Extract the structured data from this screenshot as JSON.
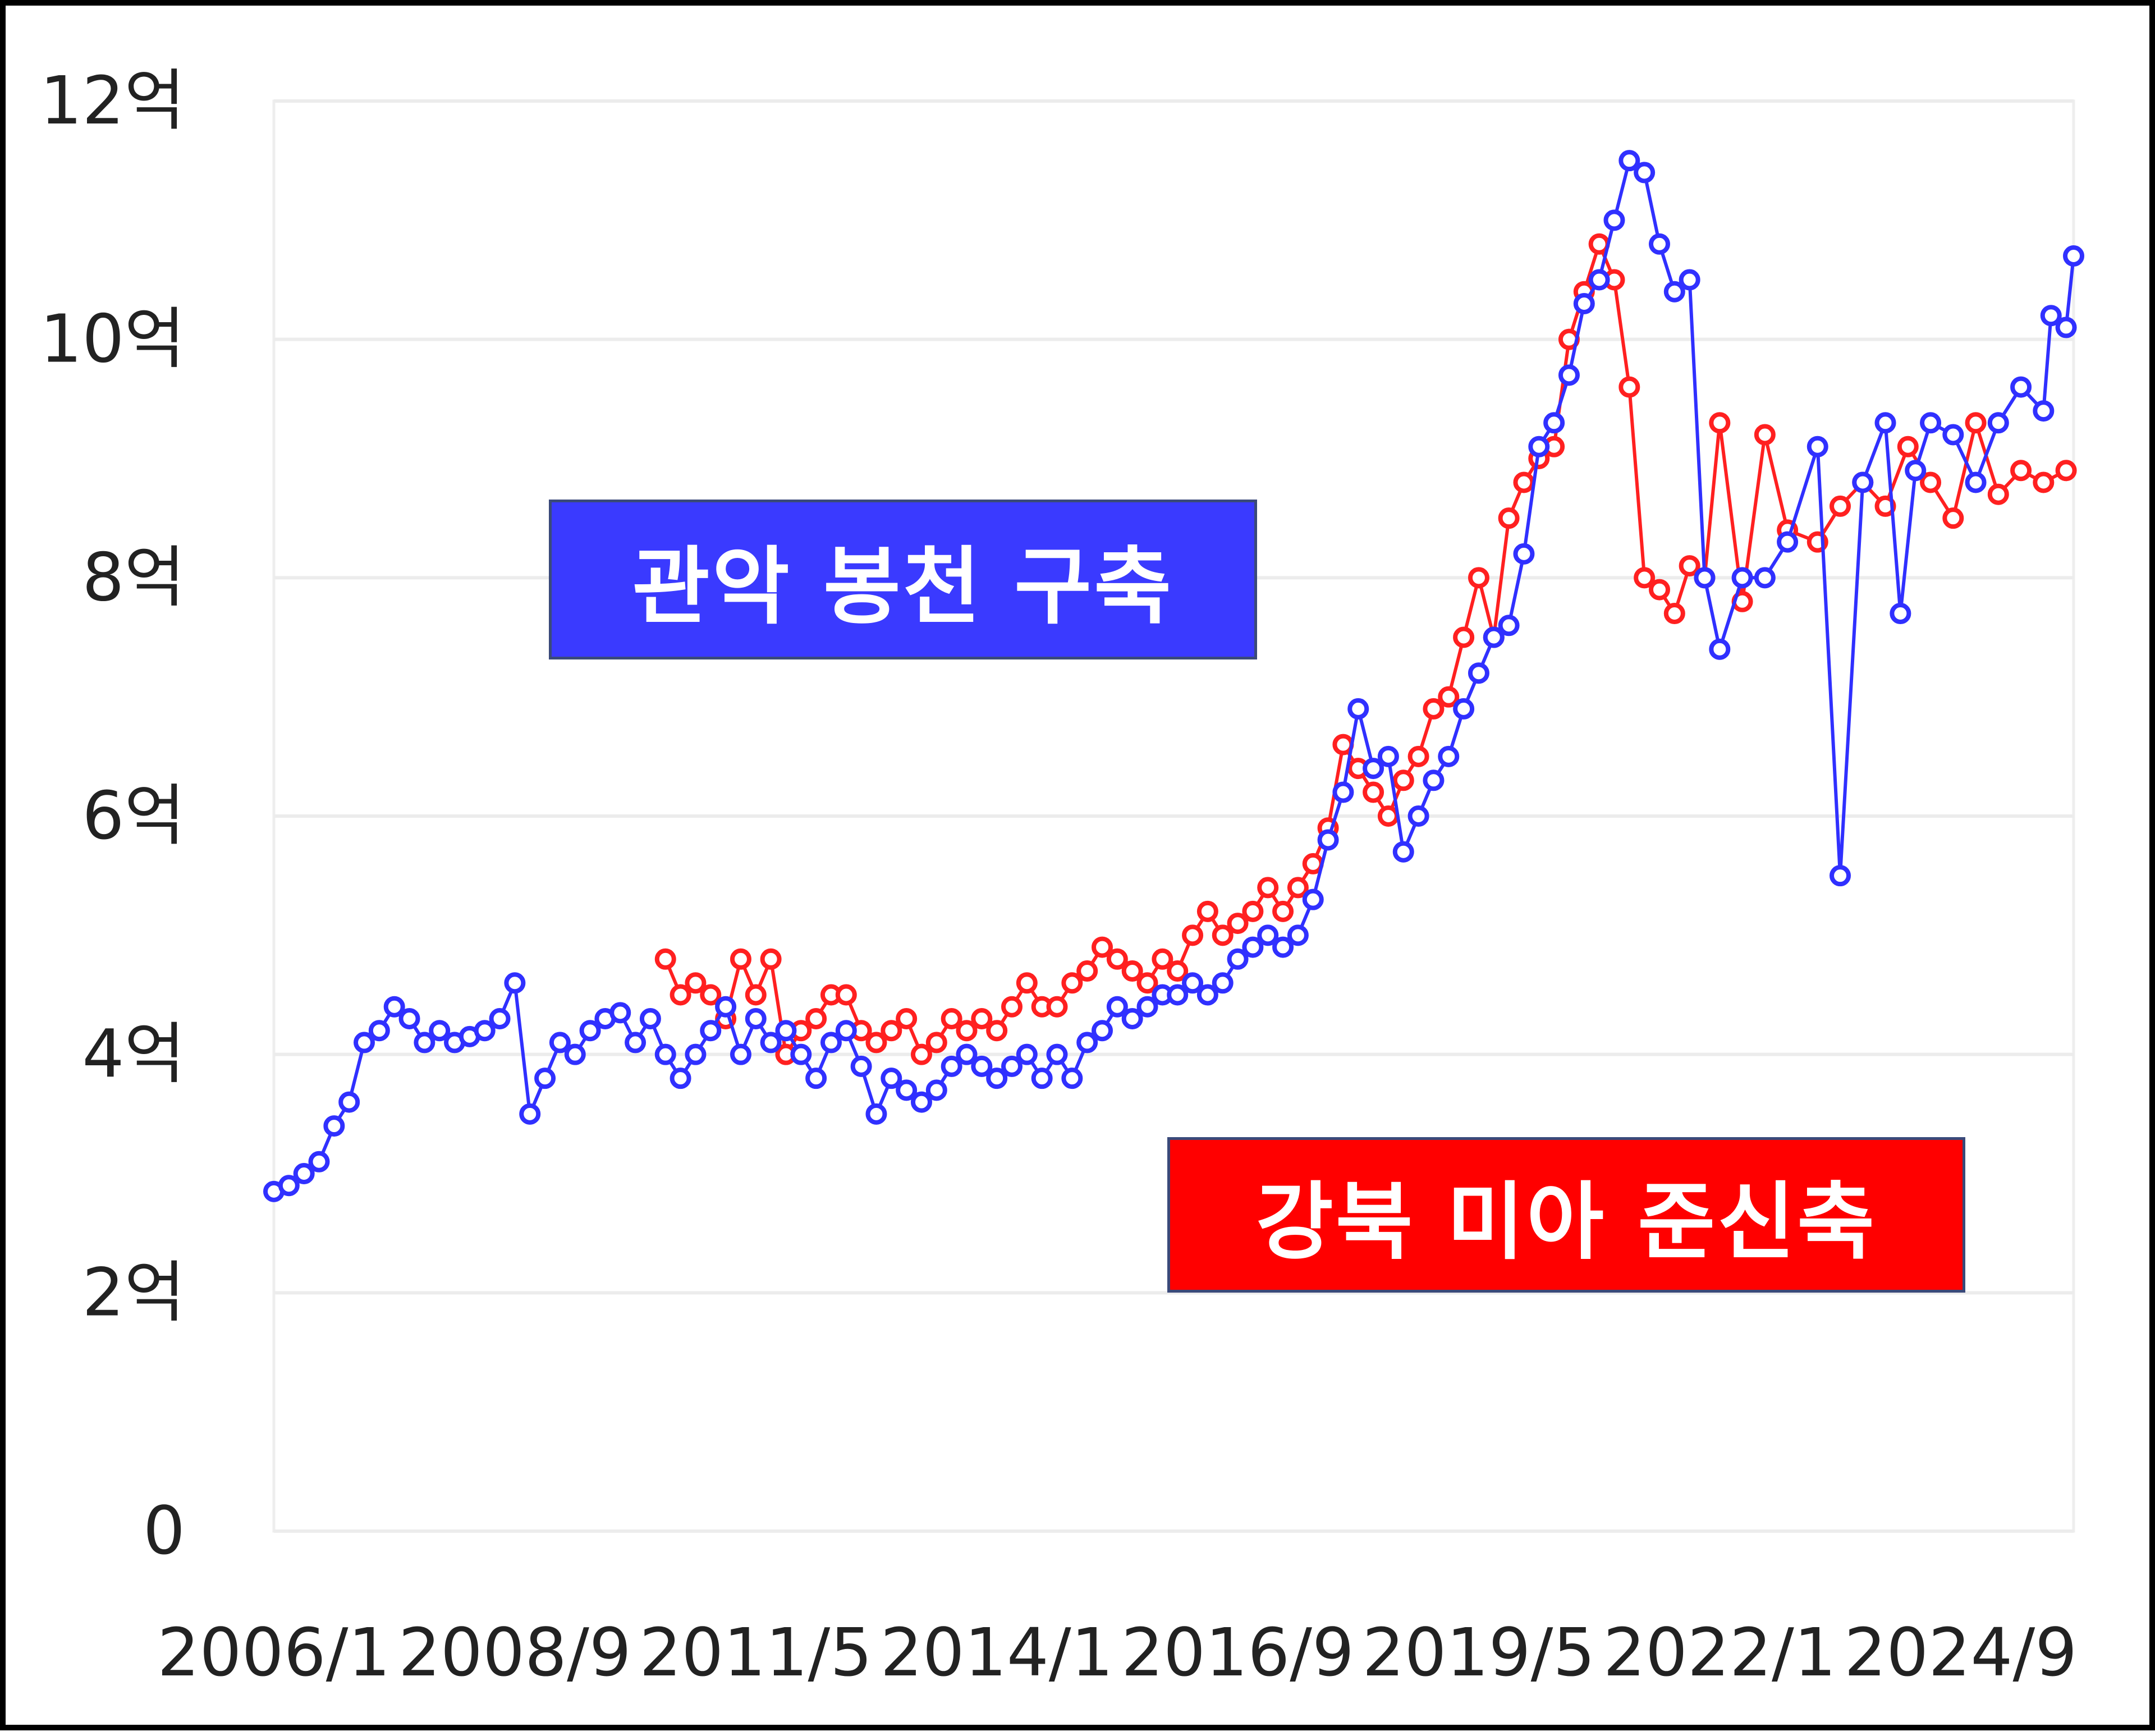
{
  "chart_data": {
    "type": "line",
    "y_ticks": [
      "0",
      "2억",
      "4억",
      "6억",
      "8억",
      "10억",
      "12억"
    ],
    "x_ticks": [
      "2006/1",
      "2008/9",
      "2011/5",
      "2014/1",
      "2016/9",
      "2019/5",
      "2022/1",
      "2024/9"
    ],
    "ylim": [
      0,
      12
    ],
    "xlim": [
      "2006/1",
      "2025/12"
    ],
    "grid": true,
    "series": [
      {
        "name": "강북 미아 준신축",
        "color": "#ff2020",
        "x": [
          "2010/5",
          "2010/7",
          "2010/9",
          "2010/11",
          "2011/1",
          "2011/3",
          "2011/5",
          "2011/7",
          "2011/9",
          "2011/11",
          "2012/1",
          "2012/3",
          "2012/5",
          "2012/7",
          "2012/9",
          "2012/11",
          "2013/1",
          "2013/3",
          "2013/5",
          "2013/7",
          "2013/9",
          "2013/11",
          "2014/1",
          "2014/3",
          "2014/5",
          "2014/7",
          "2014/9",
          "2014/11",
          "2015/1",
          "2015/3",
          "2015/5",
          "2015/7",
          "2015/9",
          "2015/11",
          "2016/1",
          "2016/3",
          "2016/5",
          "2016/7",
          "2016/9",
          "2016/11",
          "2017/1",
          "2017/3",
          "2017/5",
          "2017/7",
          "2017/9",
          "2017/11",
          "2018/1",
          "2018/3",
          "2018/5",
          "2018/7",
          "2018/9",
          "2018/11",
          "2019/1",
          "2019/3",
          "2019/5",
          "2019/7",
          "2019/9",
          "2019/11",
          "2020/1",
          "2020/3",
          "2020/5",
          "2020/7",
          "2020/9",
          "2020/11",
          "2021/1",
          "2021/3",
          "2021/5",
          "2021/7",
          "2021/9",
          "2021/11",
          "2022/1",
          "2022/4",
          "2022/7",
          "2022/10",
          "2023/2",
          "2023/5",
          "2023/8",
          "2023/11",
          "2024/2",
          "2024/5",
          "2024/8",
          "2024/11",
          "2025/2",
          "2025/5",
          "2025/8",
          "2025/11"
        ],
        "values": [
          4.8,
          4.5,
          4.6,
          4.5,
          4.3,
          4.8,
          4.5,
          4.8,
          4.0,
          4.2,
          4.3,
          4.5,
          4.5,
          4.2,
          4.1,
          4.2,
          4.3,
          4.0,
          4.1,
          4.3,
          4.2,
          4.3,
          4.2,
          4.4,
          4.6,
          4.4,
          4.4,
          4.6,
          4.7,
          4.9,
          4.8,
          4.7,
          4.6,
          4.8,
          4.7,
          5.0,
          5.2,
          5.0,
          5.1,
          5.2,
          5.4,
          5.2,
          5.4,
          5.6,
          5.9,
          6.6,
          6.4,
          6.2,
          6.0,
          6.3,
          6.5,
          6.9,
          7.0,
          7.5,
          8.0,
          7.5,
          8.5,
          8.8,
          9.0,
          9.1,
          10.0,
          10.4,
          10.8,
          10.5,
          9.6,
          8.0,
          7.9,
          7.7,
          8.1,
          8.0,
          9.3,
          7.8,
          9.2,
          8.4,
          8.3,
          8.6,
          8.8,
          8.6,
          9.1,
          8.8,
          8.5,
          9.3,
          8.7,
          8.9,
          8.8,
          8.9
        ],
        "dots": true
      },
      {
        "name": "관악 봉천 구축",
        "color": "#3030ff",
        "x": [
          "2006/1",
          "2006/3",
          "2006/5",
          "2006/7",
          "2006/9",
          "2006/11",
          "2007/1",
          "2007/3",
          "2007/5",
          "2007/7",
          "2007/9",
          "2007/11",
          "2008/1",
          "2008/3",
          "2008/5",
          "2008/7",
          "2008/9",
          "2008/11",
          "2009/1",
          "2009/3",
          "2009/5",
          "2009/7",
          "2009/9",
          "2009/11",
          "2010/1",
          "2010/3",
          "2010/5",
          "2010/7",
          "2010/9",
          "2010/11",
          "2011/1",
          "2011/3",
          "2011/5",
          "2011/7",
          "2011/9",
          "2011/11",
          "2012/1",
          "2012/3",
          "2012/5",
          "2012/7",
          "2012/9",
          "2012/11",
          "2013/1",
          "2013/3",
          "2013/5",
          "2013/7",
          "2013/9",
          "2013/11",
          "2014/1",
          "2014/3",
          "2014/5",
          "2014/7",
          "2014/9",
          "2014/11",
          "2015/1",
          "2015/3",
          "2015/5",
          "2015/7",
          "2015/9",
          "2015/11",
          "2016/1",
          "2016/3",
          "2016/5",
          "2016/7",
          "2016/9",
          "2016/11",
          "2017/1",
          "2017/3",
          "2017/5",
          "2017/7",
          "2017/9",
          "2017/11",
          "2018/1",
          "2018/3",
          "2018/5",
          "2018/7",
          "2018/9",
          "2018/11",
          "2019/1",
          "2019/3",
          "2019/5",
          "2019/7",
          "2019/9",
          "2019/11",
          "2020/1",
          "2020/3",
          "2020/5",
          "2020/7",
          "2020/9",
          "2020/11",
          "2021/1",
          "2021/3",
          "2021/5",
          "2021/7",
          "2021/9",
          "2021/11",
          "2022/1",
          "2022/4",
          "2022/7",
          "2022/10",
          "2023/2",
          "2023/5",
          "2023/8",
          "2023/11",
          "2024/1",
          "2024/3",
          "2024/5",
          "2024/8",
          "2024/11",
          "2025/2",
          "2025/5",
          "2025/8",
          "2025/9",
          "2025/11",
          "2025/12"
        ],
        "values": [
          2.85,
          2.9,
          3.0,
          3.1,
          3.4,
          3.6,
          4.1,
          4.2,
          4.4,
          4.3,
          4.1,
          4.2,
          4.1,
          4.15,
          4.2,
          4.3,
          4.6,
          3.5,
          3.8,
          4.1,
          4.0,
          4.2,
          4.3,
          4.35,
          4.1,
          4.3,
          4.0,
          3.8,
          4.0,
          4.2,
          4.4,
          4.0,
          4.3,
          4.1,
          4.2,
          4.0,
          3.8,
          4.1,
          4.2,
          3.9,
          3.5,
          3.8,
          3.7,
          3.6,
          3.7,
          3.9,
          4.0,
          3.9,
          3.8,
          3.9,
          4.0,
          3.8,
          4.0,
          3.8,
          4.1,
          4.2,
          4.4,
          4.3,
          4.4,
          4.5,
          4.5,
          4.6,
          4.5,
          4.6,
          4.8,
          4.9,
          5.0,
          4.9,
          5.0,
          5.3,
          5.8,
          6.2,
          6.9,
          6.4,
          6.5,
          5.7,
          6.0,
          6.3,
          6.5,
          6.9,
          7.2,
          7.5,
          7.6,
          8.2,
          9.1,
          9.3,
          9.7,
          10.3,
          10.5,
          11.0,
          11.5,
          11.4,
          10.8,
          10.4,
          10.5,
          8.0,
          7.4,
          8.0,
          8.0,
          8.3,
          9.1,
          5.5,
          8.8,
          9.3,
          7.7,
          8.9,
          9.3,
          9.2,
          8.8,
          9.3,
          9.6,
          9.4,
          10.2,
          10.1,
          10.7
        ],
        "dots": true
      }
    ],
    "annotations": [
      {
        "text": "관악 봉천 구축",
        "background": "#3a3aff",
        "color": "#ffffff"
      },
      {
        "text": "강북 미아 준신축",
        "background": "#ff0000",
        "color": "#ffffff"
      }
    ]
  }
}
